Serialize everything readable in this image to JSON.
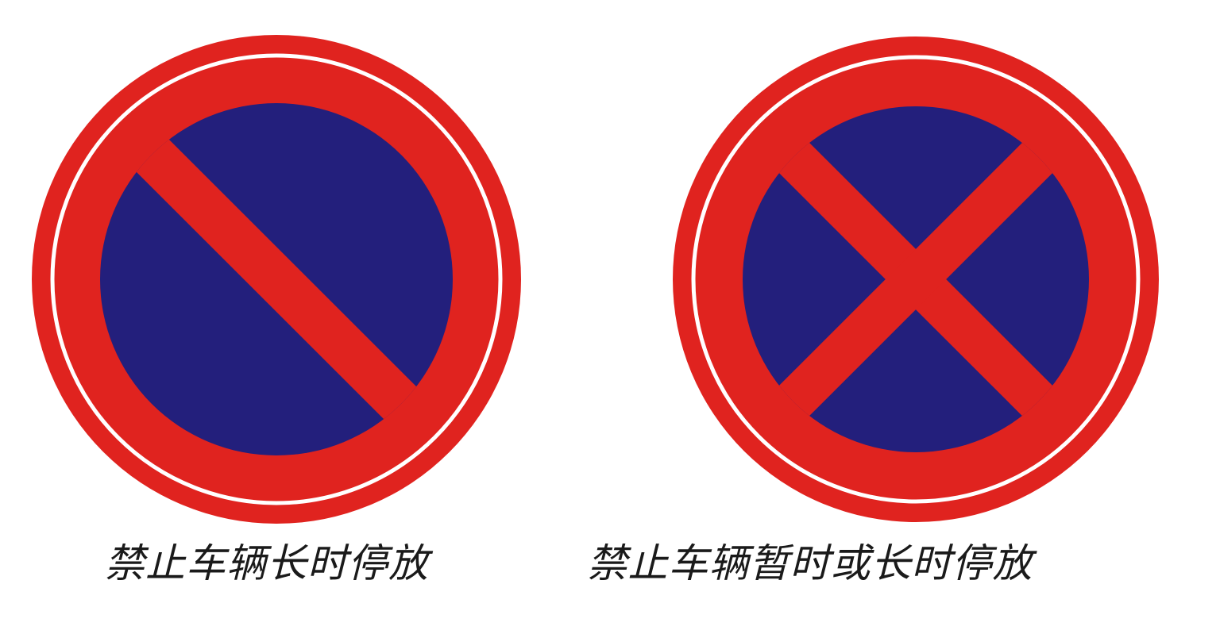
{
  "colors": {
    "ring_red": "#E0231F",
    "inner_blue": "#231F7C",
    "separator_white": "#FFFFFF"
  },
  "signs": [
    {
      "symbol": "single-diagonal-bar",
      "caption": "禁止车辆长时停放"
    },
    {
      "symbol": "cross-bars",
      "caption": "禁止车辆暂时或长时停放"
    }
  ]
}
